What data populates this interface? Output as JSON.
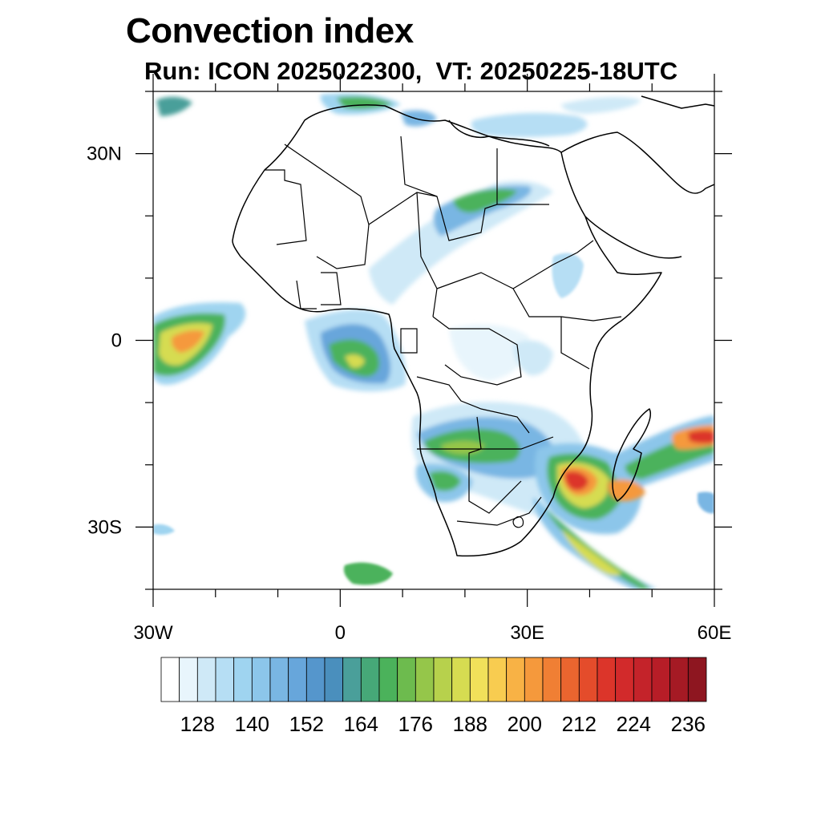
{
  "title": "Convection index",
  "subtitle": "Run: ICON 2025022300,  VT: 20250225-18UTC",
  "map": {
    "lon_range": [
      -30,
      60
    ],
    "lat_range": [
      -40,
      40
    ],
    "x_tick_labels": [
      {
        "lon": -30,
        "label": "30W"
      },
      {
        "lon": 0,
        "label": "0"
      },
      {
        "lon": 30,
        "label": "30E"
      },
      {
        "lon": 60,
        "label": "60E"
      }
    ],
    "y_tick_labels": [
      {
        "lat": 30,
        "label": "30N"
      },
      {
        "lat": 0,
        "label": "0"
      },
      {
        "lat": -30,
        "label": "30S"
      }
    ],
    "minor_lon_ticks": [
      -30,
      -20,
      -10,
      0,
      10,
      20,
      30,
      40,
      50,
      60
    ],
    "minor_lat_ticks": [
      40,
      30,
      20,
      10,
      0,
      -10,
      -20,
      -30,
      -40
    ]
  },
  "colorbar": {
    "levels": [
      120,
      124,
      128,
      132,
      136,
      140,
      144,
      148,
      152,
      156,
      160,
      164,
      168,
      172,
      176,
      180,
      184,
      188,
      192,
      196,
      200,
      204,
      208,
      212,
      216,
      220,
      224,
      228,
      232,
      236,
      240
    ],
    "colors": [
      "#ffffff",
      "#e8f5fc",
      "#cfe9f7",
      "#b6def4",
      "#9fd4f0",
      "#8cc6ea",
      "#79b6e3",
      "#67a6db",
      "#5596cc",
      "#4a8fbd",
      "#4a9f9a",
      "#46a878",
      "#4bb25b",
      "#6dbb4e",
      "#95c64a",
      "#b7d14c",
      "#d6dc51",
      "#f1e05a",
      "#f8cc50",
      "#f8b245",
      "#f5993c",
      "#f07f34",
      "#ea652f",
      "#e44c2b",
      "#dc352a",
      "#d22a2b",
      "#c4232a",
      "#b71d27",
      "#a51a24",
      "#8e1620"
    ],
    "labels": [
      "128",
      "140",
      "152",
      "164",
      "176",
      "188",
      "200",
      "212",
      "224",
      "236"
    ]
  }
}
